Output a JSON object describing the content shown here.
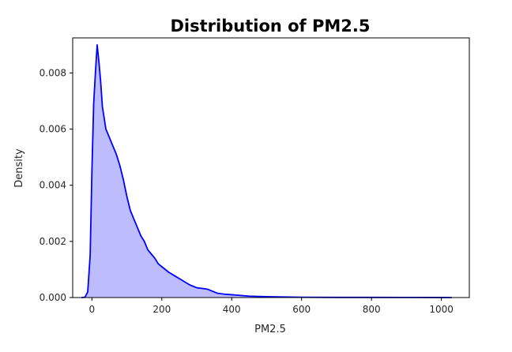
{
  "chart_data": {
    "type": "area",
    "title": "Distribution of PM2.5",
    "xlabel": "PM2.5",
    "ylabel": "Density",
    "xlim": [
      -55,
      1080
    ],
    "ylim": [
      0,
      0.00925
    ],
    "xticks": [
      0,
      200,
      400,
      600,
      800,
      1000
    ],
    "yticks": [
      0.0,
      0.002,
      0.004,
      0.006,
      0.008
    ],
    "xtick_labels": [
      "0",
      "200",
      "400",
      "600",
      "800",
      "1000"
    ],
    "ytick_labels": [
      "0.000",
      "0.002",
      "0.004",
      "0.006",
      "0.008"
    ],
    "grid": false,
    "line_color": "#0000ff",
    "fill_color": "#bcbcff",
    "x": [
      -30,
      -20,
      -12,
      -5,
      0,
      5,
      10,
      15,
      20,
      25,
      30,
      40,
      50,
      60,
      70,
      80,
      90,
      100,
      110,
      120,
      130,
      140,
      150,
      160,
      170,
      180,
      190,
      200,
      220,
      240,
      260,
      280,
      300,
      330,
      360,
      380,
      400,
      420,
      450,
      500,
      550,
      600,
      700,
      800,
      900,
      1000,
      1030
    ],
    "y": [
      0.0,
      1e-05,
      0.0002,
      0.0015,
      0.0045,
      0.0069,
      0.008,
      0.009,
      0.0084,
      0.0077,
      0.0068,
      0.006,
      0.0057,
      0.0054,
      0.0051,
      0.0047,
      0.0042,
      0.0036,
      0.0031,
      0.0028,
      0.0025,
      0.0022,
      0.002,
      0.0017,
      0.00155,
      0.0014,
      0.0012,
      0.0011,
      0.0009,
      0.00075,
      0.0006,
      0.00045,
      0.00035,
      0.0003,
      0.00015,
      0.00012,
      0.0001,
      8e-05,
      5e-05,
      3e-05,
      2e-05,
      1e-05,
      5e-06,
      5e-06,
      3e-06,
      2e-06,
      0.0
    ]
  }
}
